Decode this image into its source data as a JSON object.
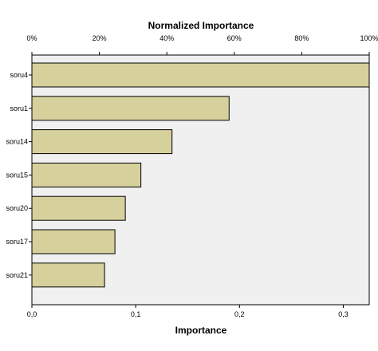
{
  "chart_data": {
    "type": "bar",
    "orientation": "horizontal",
    "title": "Normalized Importance",
    "xlabel": "Importance",
    "categories": [
      "soru4",
      "soru1",
      "soru14",
      "soru15",
      "soru20",
      "soru17",
      "soru21"
    ],
    "values": [
      0.325,
      0.19,
      0.135,
      0.105,
      0.09,
      0.08,
      0.07
    ],
    "xlim": [
      0,
      0.325
    ],
    "bottom_ticks": [
      "0,0",
      "0,1",
      "0,2",
      "0,3"
    ],
    "bottom_tick_values": [
      0,
      0.1,
      0.2,
      0.3
    ],
    "top_axis_ticks": [
      "0%",
      "20%",
      "40%",
      "60%",
      "80%",
      "100%"
    ],
    "top_axis_tick_values": [
      0,
      20,
      40,
      60,
      80,
      100
    ],
    "grid": false,
    "bar_color": "#d6d09d",
    "bar_edge_color": "#000000",
    "plot_background": "#f0f0f0"
  }
}
